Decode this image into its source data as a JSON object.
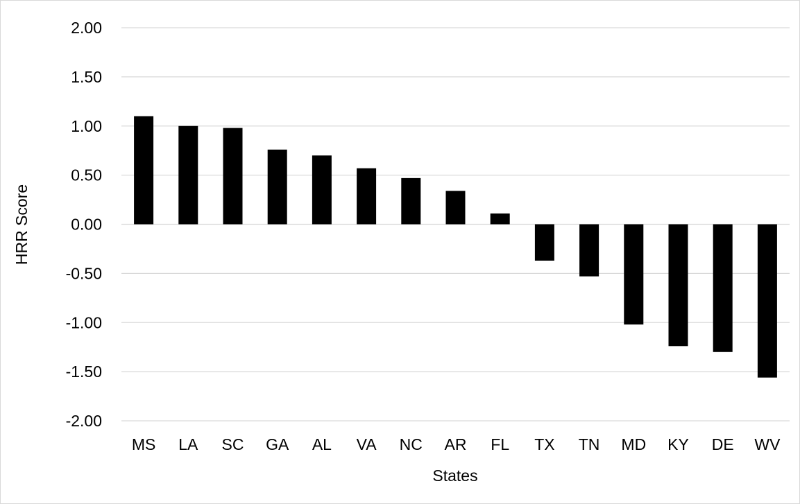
{
  "chart_data": {
    "type": "bar",
    "xlabel": "States",
    "ylabel": "HRR Score",
    "categories": [
      "MS",
      "LA",
      "SC",
      "GA",
      "AL",
      "VA",
      "NC",
      "AR",
      "FL",
      "TX",
      "TN",
      "MD",
      "KY",
      "DE",
      "WV"
    ],
    "values": [
      1.1,
      1.0,
      0.98,
      0.76,
      0.7,
      0.57,
      0.47,
      0.34,
      0.11,
      -0.37,
      -0.53,
      -1.02,
      -1.24,
      -1.3,
      -1.56
    ],
    "ylim": [
      -2.0,
      2.0
    ],
    "yticks": [
      "2.00",
      "1.50",
      "1.00",
      "0.50",
      "0.00",
      "-0.50",
      "-1.00",
      "-1.50",
      "-2.00"
    ],
    "grid": true,
    "legend": "none",
    "bar_color": "#000000",
    "grid_color": "#d9d9d9"
  }
}
